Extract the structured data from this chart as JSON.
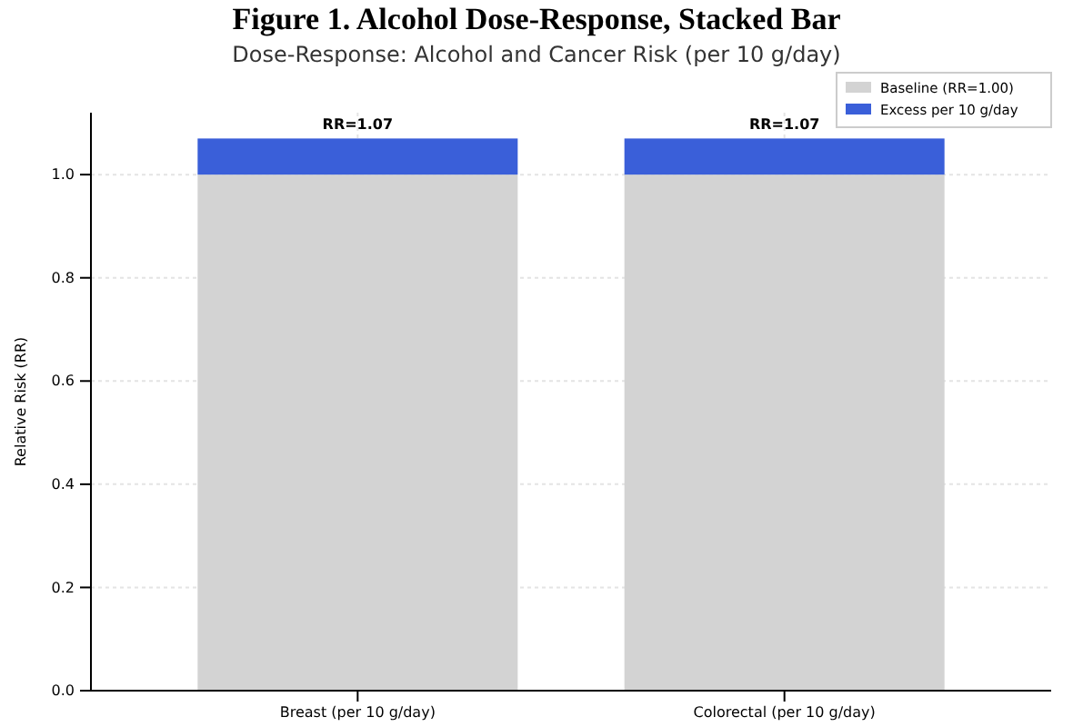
{
  "chart_data": {
    "type": "bar",
    "title": "Figure 1. Alcohol Dose-Response, Stacked Bar",
    "subtitle": "Dose-Response: Alcohol and Cancer Risk (per 10 g/day)",
    "ylabel": "Relative Risk (RR)",
    "categories": [
      "Breast (per 10 g/day)",
      "Colorectal (per 10 g/day)"
    ],
    "stacked": true,
    "series": [
      {
        "name": "Baseline (RR=1.00)",
        "color": "#d3d3d3",
        "values": [
          1.0,
          1.0
        ]
      },
      {
        "name": "Excess per 10 g/day",
        "color": "#3a5fd9",
        "values": [
          0.07,
          0.07
        ]
      }
    ],
    "totals": [
      "RR=1.07",
      "RR=1.07"
    ],
    "ylim": [
      0,
      1.12
    ],
    "yticks": [
      {
        "value": 0,
        "label": "0.0"
      },
      {
        "value": 0.2,
        "label": "0.2"
      },
      {
        "value": 0.4,
        "label": "0.4"
      },
      {
        "value": 0.6,
        "label": "0.6"
      },
      {
        "value": 0.8,
        "label": "0.8"
      },
      {
        "value": 1.0,
        "label": "1.0"
      }
    ],
    "grid": true,
    "legend": "top right"
  }
}
